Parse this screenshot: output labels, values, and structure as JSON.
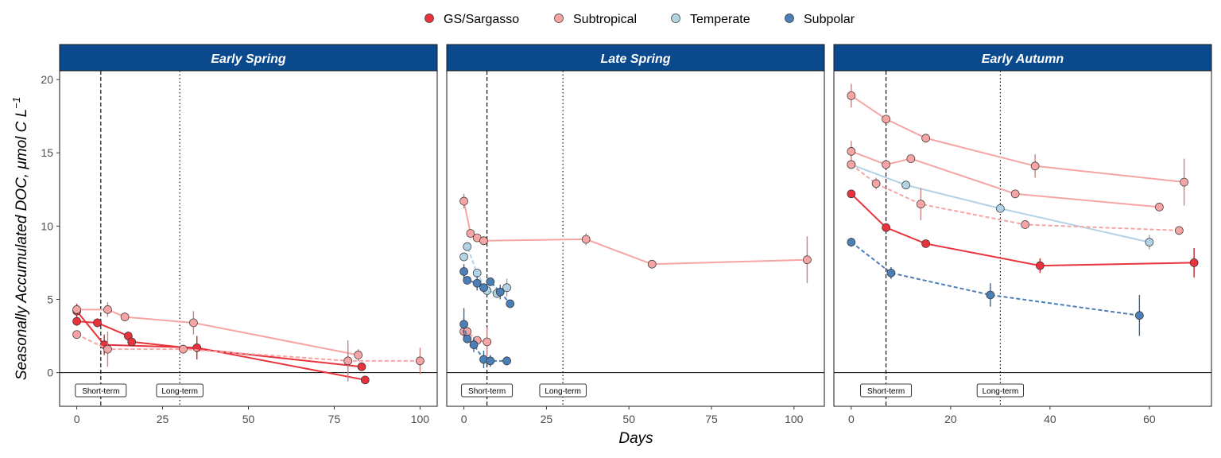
{
  "chart_data": {
    "type": "line",
    "xlabel": "Days",
    "ylabel": "Seasonally Accumulated DOC, μmol C L",
    "ylabel_superscript": "−1",
    "ylim": [
      -2.3,
      20.6
    ],
    "y_ticks": [
      0,
      5,
      10,
      15,
      20
    ],
    "legend": {
      "position": "top",
      "entries": [
        {
          "name": "GS/Sargasso",
          "color": "#e8323c"
        },
        {
          "name": "Subtropical",
          "color": "#f7a4a4"
        },
        {
          "name": "Temperate",
          "color": "#b2d3e6"
        },
        {
          "name": "Subpolar",
          "color": "#4a7fb8"
        }
      ]
    },
    "reference_lines": [
      {
        "label": "Short-term",
        "x": 7,
        "style": "dashed"
      },
      {
        "label": "Long-term",
        "x": 30,
        "style": "dotted"
      }
    ],
    "panels": [
      {
        "title": "Early Spring",
        "xlim": [
          -5,
          105
        ],
        "x_ticks": [
          0,
          25,
          50,
          75,
          100
        ],
        "series": [
          {
            "group": "GS/Sargasso",
            "line": "solid",
            "points": [
              {
                "x": 0,
                "y": 4.2,
                "e": 0.5
              },
              {
                "x": 8,
                "y": 1.9,
                "e": 0.7
              },
              {
                "x": 35,
                "y": 1.7,
                "e": 0.8
              },
              {
                "x": 84,
                "y": -0.5,
                "e": 0
              }
            ]
          },
          {
            "group": "GS/Sargasso",
            "line": "solid",
            "points": [
              {
                "x": 0,
                "y": 3.5,
                "e": 0.3
              },
              {
                "x": 6,
                "y": 3.4,
                "e": 0.3
              },
              {
                "x": 15,
                "y": 2.5,
                "e": 0.3
              },
              {
                "x": 16,
                "y": 2.1,
                "e": 0.3
              },
              {
                "x": 83,
                "y": 0.4,
                "e": 0
              }
            ]
          },
          {
            "group": "Subtropical",
            "line": "solid",
            "points": [
              {
                "x": 0,
                "y": 4.3,
                "e": 0
              },
              {
                "x": 9,
                "y": 4.3,
                "e": 0.5
              },
              {
                "x": 14,
                "y": 3.8,
                "e": 0.3
              },
              {
                "x": 34,
                "y": 3.4,
                "e": 0.8
              },
              {
                "x": 82,
                "y": 1.2,
                "e": 0.4
              }
            ]
          },
          {
            "group": "Subtropical",
            "line": "dashed",
            "points": [
              {
                "x": 0,
                "y": 2.6,
                "e": 0
              },
              {
                "x": 9,
                "y": 1.6,
                "e": 1.2
              },
              {
                "x": 31,
                "y": 1.6,
                "e": 0.3
              },
              {
                "x": 79,
                "y": 0.8,
                "e": 1.4
              },
              {
                "x": 100,
                "y": 0.8,
                "e": 0.9
              }
            ]
          }
        ]
      },
      {
        "title": "Late Spring",
        "xlim": [
          -5.2,
          109.2
        ],
        "x_ticks": [
          0,
          25,
          50,
          75,
          100
        ],
        "series": [
          {
            "group": "Subtropical",
            "line": "solid",
            "points": [
              {
                "x": 0,
                "y": 11.7,
                "e": 0.5
              },
              {
                "x": 2,
                "y": 9.5,
                "e": 0
              },
              {
                "x": 4,
                "y": 9.2,
                "e": 0
              },
              {
                "x": 6,
                "y": 9.0,
                "e": 0.3
              },
              {
                "x": 37,
                "y": 9.1,
                "e": 0.4
              },
              {
                "x": 57,
                "y": 7.4,
                "e": 0
              },
              {
                "x": 104,
                "y": 7.7,
                "e": 1.6
              }
            ]
          },
          {
            "group": "Temperate",
            "line": "dashed",
            "points": [
              {
                "x": 0,
                "y": 7.9,
                "e": 0
              },
              {
                "x": 1,
                "y": 8.6,
                "e": 0
              },
              {
                "x": 4,
                "y": 6.8,
                "e": 0
              },
              {
                "x": 7,
                "y": 5.6,
                "e": 0.3
              },
              {
                "x": 10,
                "y": 5.4,
                "e": 0.3
              },
              {
                "x": 13,
                "y": 5.8,
                "e": 0.6
              }
            ]
          },
          {
            "group": "Subpolar",
            "line": "dashed",
            "points": [
              {
                "x": 0,
                "y": 6.9,
                "e": 0.5
              },
              {
                "x": 1,
                "y": 6.3,
                "e": 0
              },
              {
                "x": 4,
                "y": 6.1,
                "e": 0.5
              },
              {
                "x": 6,
                "y": 5.8,
                "e": 0
              },
              {
                "x": 8,
                "y": 6.2,
                "e": 0
              },
              {
                "x": 11,
                "y": 5.5,
                "e": 0.5
              },
              {
                "x": 14,
                "y": 4.7,
                "e": 0
              }
            ]
          },
          {
            "group": "Subtropical",
            "line": "dashed",
            "points": [
              {
                "x": 0,
                "y": 2.8,
                "e": 0
              },
              {
                "x": 1,
                "y": 2.8,
                "e": 0
              },
              {
                "x": 4,
                "y": 2.2,
                "e": 0
              },
              {
                "x": 7,
                "y": 2.1,
                "e": 1.0
              }
            ]
          },
          {
            "group": "Subpolar",
            "line": "dashed",
            "points": [
              {
                "x": 0,
                "y": 3.3,
                "e": 1.1
              },
              {
                "x": 1,
                "y": 2.3,
                "e": 0
              },
              {
                "x": 3,
                "y": 1.9,
                "e": 0.5
              },
              {
                "x": 6,
                "y": 0.9,
                "e": 0.6
              },
              {
                "x": 8,
                "y": 0.8,
                "e": 0.4
              },
              {
                "x": 13,
                "y": 0.8,
                "e": 0.3
              }
            ]
          }
        ]
      },
      {
        "title": "Early Autumn",
        "xlim": [
          -3.5,
          72.5
        ],
        "x_ticks": [
          0,
          20,
          40,
          60
        ],
        "series": [
          {
            "group": "Subtropical",
            "line": "solid",
            "points": [
              {
                "x": 0,
                "y": 18.9,
                "e": 0.8
              },
              {
                "x": 7,
                "y": 17.3,
                "e": 0
              },
              {
                "x": 15,
                "y": 16.0,
                "e": 0
              },
              {
                "x": 37,
                "y": 14.1,
                "e": 0.8
              },
              {
                "x": 67,
                "y": 13.0,
                "e": 1.6
              }
            ]
          },
          {
            "group": "Subtropical",
            "line": "solid",
            "points": [
              {
                "x": 0,
                "y": 15.1,
                "e": 0.7
              },
              {
                "x": 7,
                "y": 14.2,
                "e": 0
              },
              {
                "x": 12,
                "y": 14.6,
                "e": 0
              },
              {
                "x": 33,
                "y": 12.2,
                "e": 0
              },
              {
                "x": 62,
                "y": 11.3,
                "e": 0
              }
            ]
          },
          {
            "group": "Temperate",
            "line": "solid",
            "points": [
              {
                "x": 0,
                "y": 14.2,
                "e": 0
              },
              {
                "x": 11,
                "y": 12.8,
                "e": 0
              },
              {
                "x": 30,
                "y": 11.2,
                "e": 0
              },
              {
                "x": 60,
                "y": 8.9,
                "e": 0.5
              }
            ]
          },
          {
            "group": "Subtropical",
            "line": "dashed",
            "points": [
              {
                "x": 0,
                "y": 14.2,
                "e": 0
              },
              {
                "x": 5,
                "y": 12.9,
                "e": 0.4
              },
              {
                "x": 14,
                "y": 11.5,
                "e": 1.1
              },
              {
                "x": 35,
                "y": 10.1,
                "e": 0
              },
              {
                "x": 66,
                "y": 9.7,
                "e": 0
              }
            ]
          },
          {
            "group": "GS/Sargasso",
            "line": "solid",
            "points": [
              {
                "x": 0,
                "y": 12.2,
                "e": 0
              },
              {
                "x": 7,
                "y": 9.9,
                "e": 0.3
              },
              {
                "x": 15,
                "y": 8.8,
                "e": 0
              },
              {
                "x": 38,
                "y": 7.3,
                "e": 0.5
              },
              {
                "x": 69,
                "y": 7.5,
                "e": 1.0
              }
            ]
          },
          {
            "group": "Subpolar",
            "line": "dashed",
            "points": [
              {
                "x": 0,
                "y": 8.9,
                "e": 0.3
              },
              {
                "x": 8,
                "y": 6.8,
                "e": 0.4
              },
              {
                "x": 28,
                "y": 5.3,
                "e": 0.8
              },
              {
                "x": 58,
                "y": 3.9,
                "e": 1.4
              }
            ]
          }
        ]
      }
    ]
  }
}
